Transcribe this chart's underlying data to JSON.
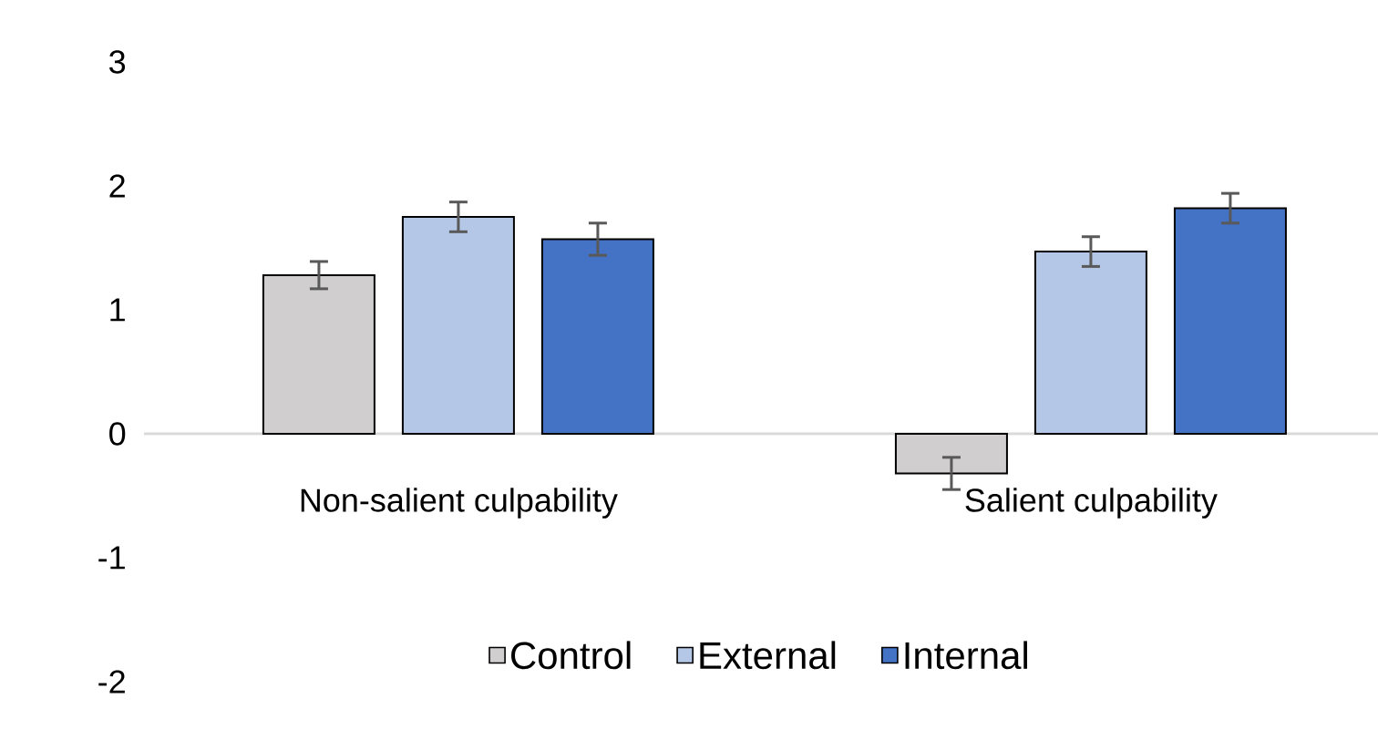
{
  "chart_data": {
    "type": "bar",
    "categories": [
      "Non-salient culpability",
      "Salient culpability"
    ],
    "series": [
      {
        "name": "Control",
        "color": "#d0cecf",
        "values": [
          1.28,
          -0.32
        ],
        "errors": [
          0.11,
          0.13
        ]
      },
      {
        "name": "External",
        "color": "#b4c7e7",
        "values": [
          1.75,
          1.47
        ],
        "errors": [
          0.12,
          0.12
        ]
      },
      {
        "name": "Internal",
        "color": "#4472c4",
        "values": [
          1.57,
          1.82
        ],
        "errors": [
          0.13,
          0.12
        ]
      }
    ],
    "ylim": [
      -2,
      3
    ],
    "yticks": [
      -2,
      -1,
      0,
      1,
      2,
      3
    ],
    "grid": false,
    "legend": "bottom"
  }
}
